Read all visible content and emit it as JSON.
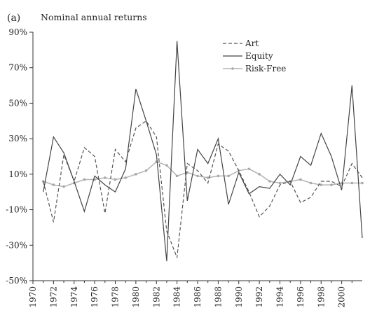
{
  "chart_data": {
    "type": "line",
    "panel_label": "(a)",
    "title": "Nominal annual returns",
    "xlabel": "",
    "ylabel": "",
    "xlim": [
      1970,
      2002
    ],
    "ylim": [
      -50,
      90
    ],
    "y_ticks": [
      -50,
      -30,
      -10,
      10,
      30,
      50,
      70,
      90
    ],
    "y_tick_labels": [
      "-50%",
      "-30%",
      "-10%",
      "10%",
      "30%",
      "50%",
      "70%",
      "90%"
    ],
    "x_ticks": [
      1970,
      1972,
      1974,
      1976,
      1978,
      1980,
      1982,
      1984,
      1986,
      1988,
      1990,
      1992,
      1994,
      1996,
      1998,
      2000
    ],
    "x_tick_labels": [
      "1970",
      "1972",
      "1974",
      "1976",
      "1978",
      "1980",
      "1982",
      "1984",
      "1986",
      "1988",
      "1990",
      "1992",
      "1994",
      "1996",
      "1998",
      "2000"
    ],
    "grid": false,
    "legend_position": "top-right",
    "x": [
      1971,
      1972,
      1973,
      1974,
      1975,
      1976,
      1977,
      1978,
      1979,
      1980,
      1981,
      1982,
      1983,
      1984,
      1985,
      1986,
      1987,
      1988,
      1989,
      1990,
      1991,
      1992,
      1993,
      1994,
      1995,
      1996,
      1997,
      1998,
      1999,
      2000,
      2001,
      2002
    ],
    "series": [
      {
        "name": "Art",
        "style": "dashed",
        "color": "#555555",
        "values": [
          6,
          -17,
          21,
          6,
          25,
          20,
          -12,
          24,
          17,
          36,
          40,
          31,
          -22,
          -37,
          16,
          12,
          5,
          27,
          23,
          12,
          0,
          -14,
          -8,
          4,
          6,
          -6,
          -3,
          6,
          6,
          3,
          16,
          8
        ]
      },
      {
        "name": "Equity",
        "style": "solid",
        "color": "#444444",
        "values": [
          0,
          31,
          22,
          6,
          -11,
          9,
          4,
          0,
          13,
          58,
          40,
          21,
          -39,
          85,
          -5,
          24,
          16,
          30,
          -7,
          11,
          -1,
          3,
          2,
          10,
          4,
          20,
          15,
          33,
          20,
          1,
          60,
          -26
        ]
      },
      {
        "name": "Risk-Free",
        "style": "solid-markers",
        "color": "#b3b3b3",
        "values": [
          6,
          4,
          3,
          5,
          7,
          7,
          8,
          7,
          8,
          10,
          12,
          17,
          15,
          9,
          11,
          9,
          8,
          9,
          9,
          12,
          13,
          10,
          6,
          5,
          6,
          7,
          5,
          4,
          4,
          5,
          5,
          5
        ]
      }
    ]
  }
}
